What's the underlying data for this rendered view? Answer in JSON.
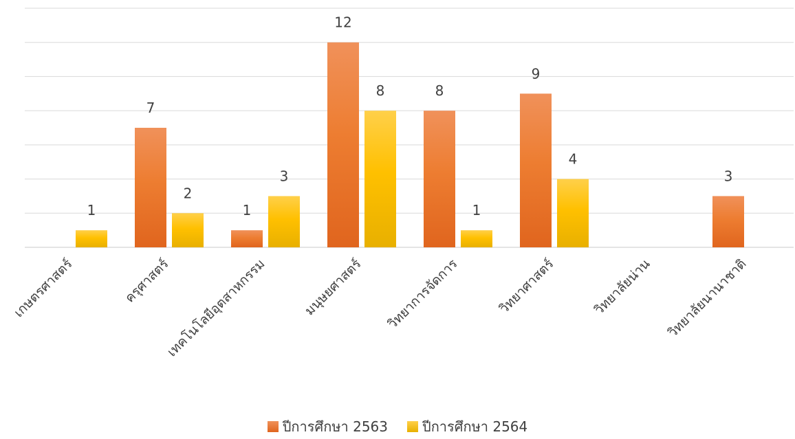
{
  "chart_data": {
    "type": "bar",
    "categories": [
      "เกษตรศาสตร์",
      "ครุศาสตร์",
      "เทคโนโลยีอุตสาหกรรม",
      "มนุษยศาสตร์",
      "วิทยาการจัดการ",
      "วิทยาศาสตร์",
      "วิทยาลัยน่าน",
      "วิทยาลัยนานาชาติ"
    ],
    "series": [
      {
        "name": "ปีการศึกษา 2563",
        "values": [
          null,
          7,
          1,
          12,
          8,
          9,
          null,
          3
        ],
        "color": "#ED7D31"
      },
      {
        "name": "ปีการศึกษา 2564",
        "values": [
          1,
          2,
          3,
          8,
          1,
          4,
          null,
          null
        ],
        "color": "#FFC000"
      }
    ],
    "ylim": [
      0,
      14
    ],
    "grid": true,
    "legend_position": "bottom",
    "data_labels": true
  }
}
